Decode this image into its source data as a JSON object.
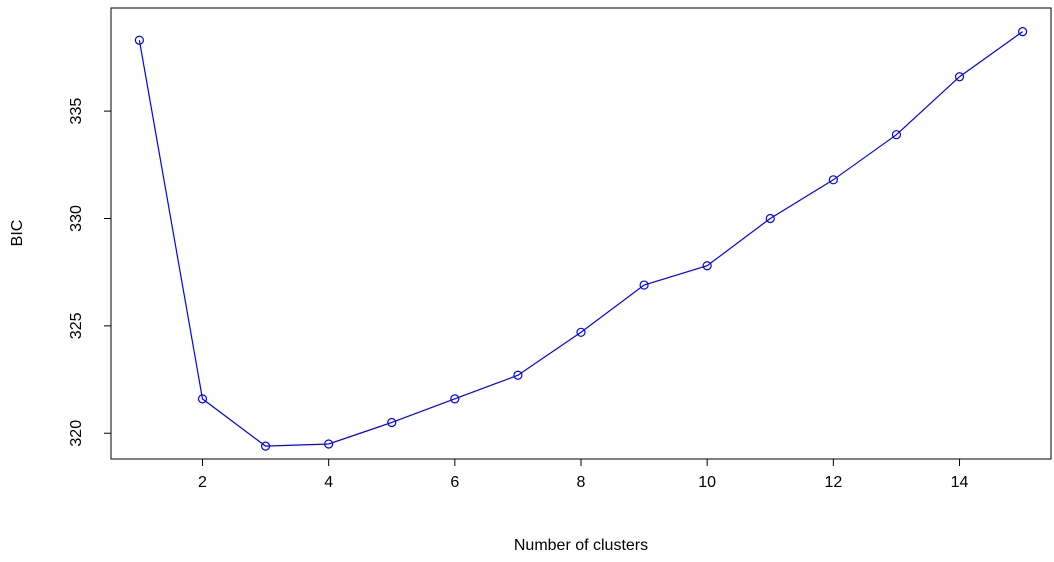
{
  "chart_data": {
    "type": "line",
    "title": "",
    "xlabel": "Number of clusters",
    "ylabel": "BIC",
    "xlim": [
      0.55,
      15.45
    ],
    "ylim": [
      318.8,
      339.8
    ],
    "xticks": [
      2,
      4,
      6,
      8,
      10,
      12,
      14
    ],
    "yticks": [
      320,
      325,
      330,
      335
    ],
    "grid": false,
    "legend": "none",
    "line_color": "#0000ff",
    "marker": "open-circle",
    "series": [
      {
        "x": [
          1,
          2,
          3,
          4,
          5,
          6,
          7,
          8,
          9,
          10,
          11,
          12,
          13,
          14,
          15
        ],
        "values": [
          338.3,
          321.6,
          319.4,
          319.5,
          320.5,
          321.6,
          322.7,
          324.7,
          326.9,
          327.8,
          330.0,
          331.8,
          333.9,
          336.6,
          338.7
        ]
      }
    ]
  }
}
